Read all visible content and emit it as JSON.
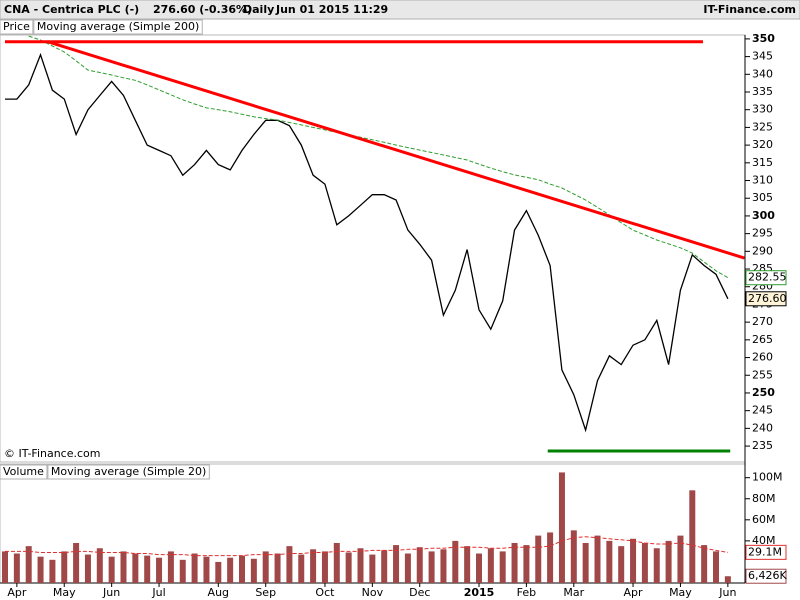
{
  "header": {
    "symbol": "CNA - Centrica PLC (-)",
    "quote": "276.60 (-0.36%)",
    "period": "Daily",
    "date": "Jun 01 2015 11:29",
    "site": "IT-Finance.com"
  },
  "chart_data": [
    {
      "type": "line",
      "ylim": [
        230.5,
        351.1
      ],
      "yticks": [
        235,
        240,
        245,
        250,
        255,
        260,
        265,
        270,
        275,
        280,
        285,
        290,
        295,
        300,
        305,
        310,
        315,
        320,
        325,
        330,
        335,
        340,
        345,
        350
      ],
      "series": [
        {
          "name": "Price",
          "color": "#000000",
          "last_label": "276.60",
          "values": [
            333,
            333,
            337,
            345.5,
            335.5,
            333,
            323,
            330,
            334,
            338,
            334,
            327,
            320,
            318.5,
            317,
            311.5,
            314.5,
            318.5,
            314.5,
            313,
            318.5,
            323,
            327,
            327,
            325.5,
            320,
            311.5,
            309,
            297.5,
            300,
            303,
            306,
            306,
            304.5,
            296,
            292,
            287.5,
            272,
            279,
            290.5,
            273.5,
            268,
            276,
            296,
            301.5,
            294.5,
            286,
            256.5,
            249.5,
            239.5,
            253.5,
            260.5,
            258,
            263.5,
            265,
            270.5,
            258,
            279,
            289,
            286,
            283.5,
            276.6
          ]
        },
        {
          "name": "Moving average (Simple 200)",
          "color": "#2e9e2e",
          "last_label": "282.55",
          "values": [
            null,
            null,
            350.8,
            349.7,
            348,
            346.3,
            343.8,
            341.2,
            340.5,
            339.8,
            339,
            338.3,
            337,
            335.6,
            334.2,
            332.8,
            331.6,
            330.5,
            330,
            329.4,
            328.7,
            328,
            327.5,
            327.1,
            326.4,
            325.7,
            325,
            324.3,
            323.6,
            322.9,
            322.2,
            321.5,
            320.8,
            320,
            319.3,
            318.6,
            317.9,
            317.2,
            316.5,
            315.8,
            314.6,
            313.5,
            312.5,
            311.6,
            310.9,
            310.2,
            309,
            307.9,
            306.2,
            304.5,
            302.4,
            300.3,
            298.1,
            296,
            294.6,
            293.2,
            292.1,
            291,
            289.5,
            287,
            284.5,
            282.55
          ]
        }
      ],
      "lines": [
        {
          "color": "#ff0000",
          "x": [
            0,
            58.9
          ],
          "y": [
            349.2,
            349.2
          ]
        },
        {
          "color": "#ff0000",
          "x": [
            3.6,
            62.4
          ],
          "y": [
            349.2,
            288.1
          ]
        },
        {
          "color": "#008000",
          "x": [
            45.8,
            61.2
          ],
          "y": [
            233.6,
            233.6
          ]
        }
      ],
      "credit": "© IT-Finance.com"
    },
    {
      "type": "bar",
      "ylim": [
        0,
        113
      ],
      "yticks": [
        {
          "value": 40,
          "label": "40M"
        },
        {
          "value": 60,
          "label": "60M"
        },
        {
          "value": 80,
          "label": "80M"
        },
        {
          "value": 100,
          "label": "100M"
        }
      ],
      "categories": [
        null,
        "Apr",
        null,
        null,
        null,
        "May",
        null,
        null,
        null,
        "Jun",
        null,
        null,
        null,
        "Jul",
        null,
        null,
        null,
        null,
        "Aug",
        null,
        null,
        null,
        "Sep",
        null,
        null,
        null,
        null,
        "Oct",
        null,
        null,
        null,
        "Nov",
        null,
        null,
        null,
        "Dec",
        null,
        null,
        null,
        null,
        "2015",
        null,
        null,
        null,
        "Feb",
        null,
        null,
        null,
        "Mar",
        null,
        null,
        null,
        null,
        "Apr",
        null,
        null,
        null,
        "May",
        null,
        null,
        null,
        "Jun"
      ],
      "series": [
        {
          "name": "Volume",
          "color": "#a04848",
          "last_label": "6,426K",
          "values": [
            30,
            28,
            35,
            25,
            22,
            30,
            38,
            27,
            33,
            25,
            30,
            28,
            26,
            24,
            30,
            22,
            28,
            25,
            20,
            24,
            26,
            23,
            30,
            28,
            35,
            27,
            32,
            30,
            38,
            29,
            33,
            27,
            31,
            36,
            28,
            34,
            30,
            32,
            40,
            35,
            28,
            33,
            30,
            38,
            36,
            45,
            48,
            105,
            50,
            38,
            45,
            40,
            35,
            42,
            38,
            33,
            40,
            45,
            88,
            36,
            30,
            6.426
          ]
        },
        {
          "name": "Moving average (Simple 20)",
          "color": "#e03030",
          "last_label": "29.1M",
          "values": [
            30,
            30,
            30,
            29,
            29,
            29,
            30,
            30,
            29,
            29,
            29,
            28,
            28,
            27,
            27,
            27,
            26,
            26,
            26,
            26,
            26,
            27,
            27,
            27,
            28,
            28,
            29,
            29,
            30,
            30,
            30,
            31,
            31,
            31,
            32,
            32,
            33,
            33,
            34,
            34,
            34,
            33,
            33,
            34,
            34,
            34,
            35,
            40,
            43,
            44,
            43,
            42,
            41,
            40,
            38,
            37,
            37,
            38,
            36,
            33,
            31,
            29.1
          ]
        }
      ]
    }
  ]
}
